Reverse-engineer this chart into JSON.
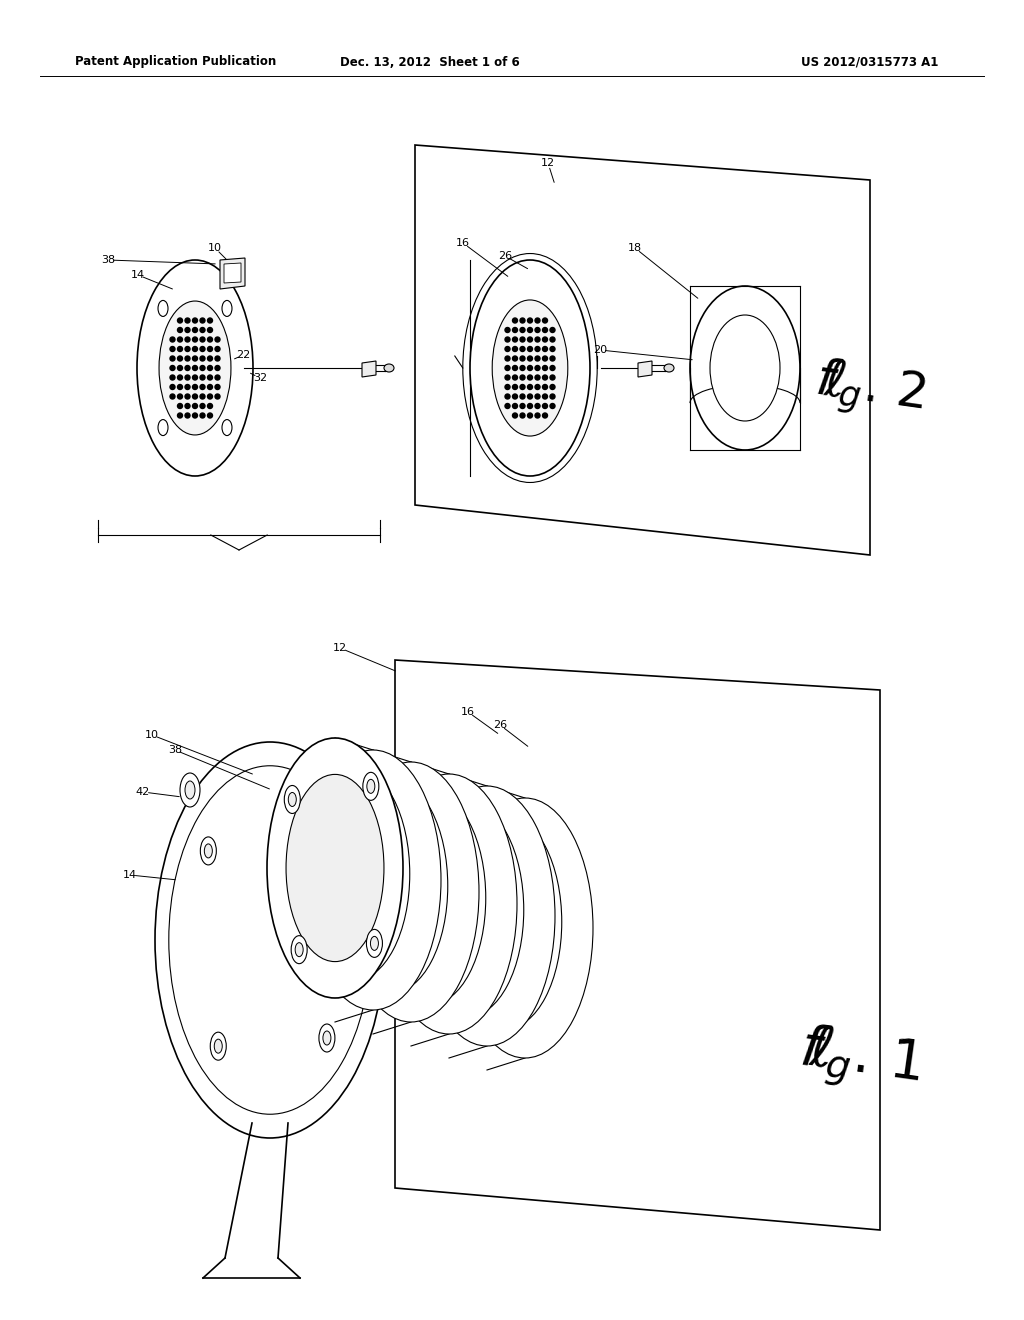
{
  "title_left": "Patent Application Publication",
  "title_mid": "Dec. 13, 2012  Sheet 1 of 6",
  "title_right": "US 2012/0315773 A1",
  "bg_color": "#ffffff",
  "line_color": "#000000",
  "fig_width": 10.24,
  "fig_height": 13.2
}
